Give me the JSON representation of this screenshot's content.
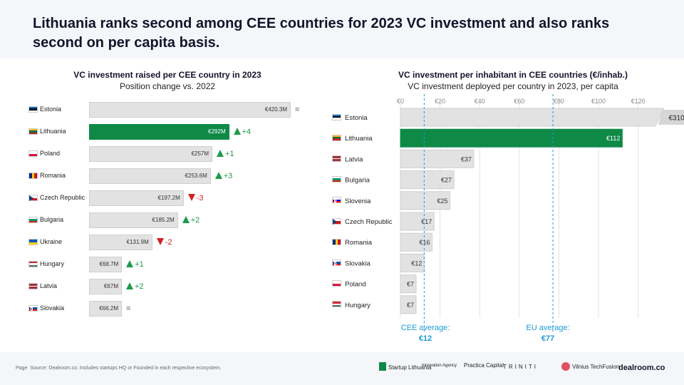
{
  "headline": "Lithuania ranks second among CEE countries for 2023 VC investment and also ranks second on per capita basis.",
  "colors": {
    "highlight": "#0e8a46",
    "bar": "#e2e2e2",
    "up": "#1f9a4a",
    "down": "#d41e26",
    "average": "#1b9bd7"
  },
  "footer": {
    "page": "Page",
    "source": "Source: Dealroom.co. Includes startups HQ or Founded in each respective ecosystem.",
    "logos": [
      "Startup Lithuania",
      "Innovation Agency",
      "Practica Capital",
      "TRINITI",
      "Vilnius TechFusion"
    ],
    "brand": "dealroom.co"
  },
  "chart_data": [
    {
      "type": "bar",
      "title": "VC investment raised per CEE country in 2023",
      "subtitle": "Position change vs. 2022",
      "categories": [
        "Estonia",
        "Lithuania",
        "Poland",
        "Romania",
        "Czech Republic",
        "Bulgaria",
        "Ukraine",
        "Hungary",
        "Latvia",
        "Slovakia"
      ],
      "values": [
        420.3,
        292,
        257,
        253.6,
        197.2,
        185.2,
        131.9,
        68.7,
        67,
        66.2
      ],
      "value_labels": [
        "€420.3M",
        "€292M",
        "€257M",
        "€253.6M",
        "€197.2M",
        "€185.2M",
        "€131.9M",
        "€68.7M",
        "€67M",
        "€66.2M"
      ],
      "changes": [
        "=",
        "+4",
        "+1",
        "+3",
        "-3",
        "+2",
        "-2",
        "+1",
        "+2",
        "="
      ],
      "highlight": "Lithuania",
      "xlim": [
        0,
        420.3
      ]
    },
    {
      "type": "bar",
      "title": "VC investment per inhabitant in CEE countries (€/inhab.)",
      "subtitle": "VC investment deployed per country in 2023, per capita",
      "categories": [
        "Estonia",
        "Lithuania",
        "Latvia",
        "Bulgaria",
        "Slovenia",
        "Czech Republic",
        "Romania",
        "Slovakia",
        "Poland",
        "Hungary"
      ],
      "values": [
        310,
        112,
        37,
        27,
        25,
        17,
        16,
        12,
        7,
        7
      ],
      "value_labels": [
        "€310",
        "€112",
        "€37",
        "€27",
        "€25",
        "€17",
        "€16",
        "€12",
        "€7",
        "€7"
      ],
      "highlight": "Lithuania",
      "x_ticks": [
        "€0",
        "€20",
        "€40",
        "€60",
        "€80",
        "€100",
        "€120"
      ],
      "xlim": [
        0,
        120
      ],
      "grid": true,
      "averages": [
        {
          "label": "CEE average:",
          "value_label": "€12",
          "value": 12
        },
        {
          "label": "EU average:",
          "value_label": "€77",
          "value": 77
        }
      ]
    }
  ]
}
